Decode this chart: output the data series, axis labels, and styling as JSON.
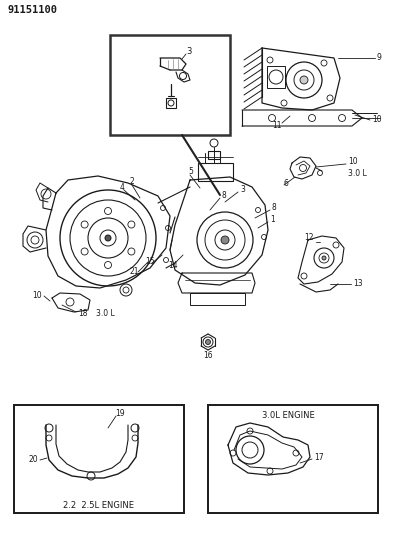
{
  "title": "91151100",
  "bg_color": "#ffffff",
  "line_color": "#1a1a1a",
  "text_color": "#1a1a1a",
  "figure_width": 3.96,
  "figure_height": 5.33,
  "dpi": 100,
  "gray": "#555555",
  "light_gray": "#aaaaaa"
}
